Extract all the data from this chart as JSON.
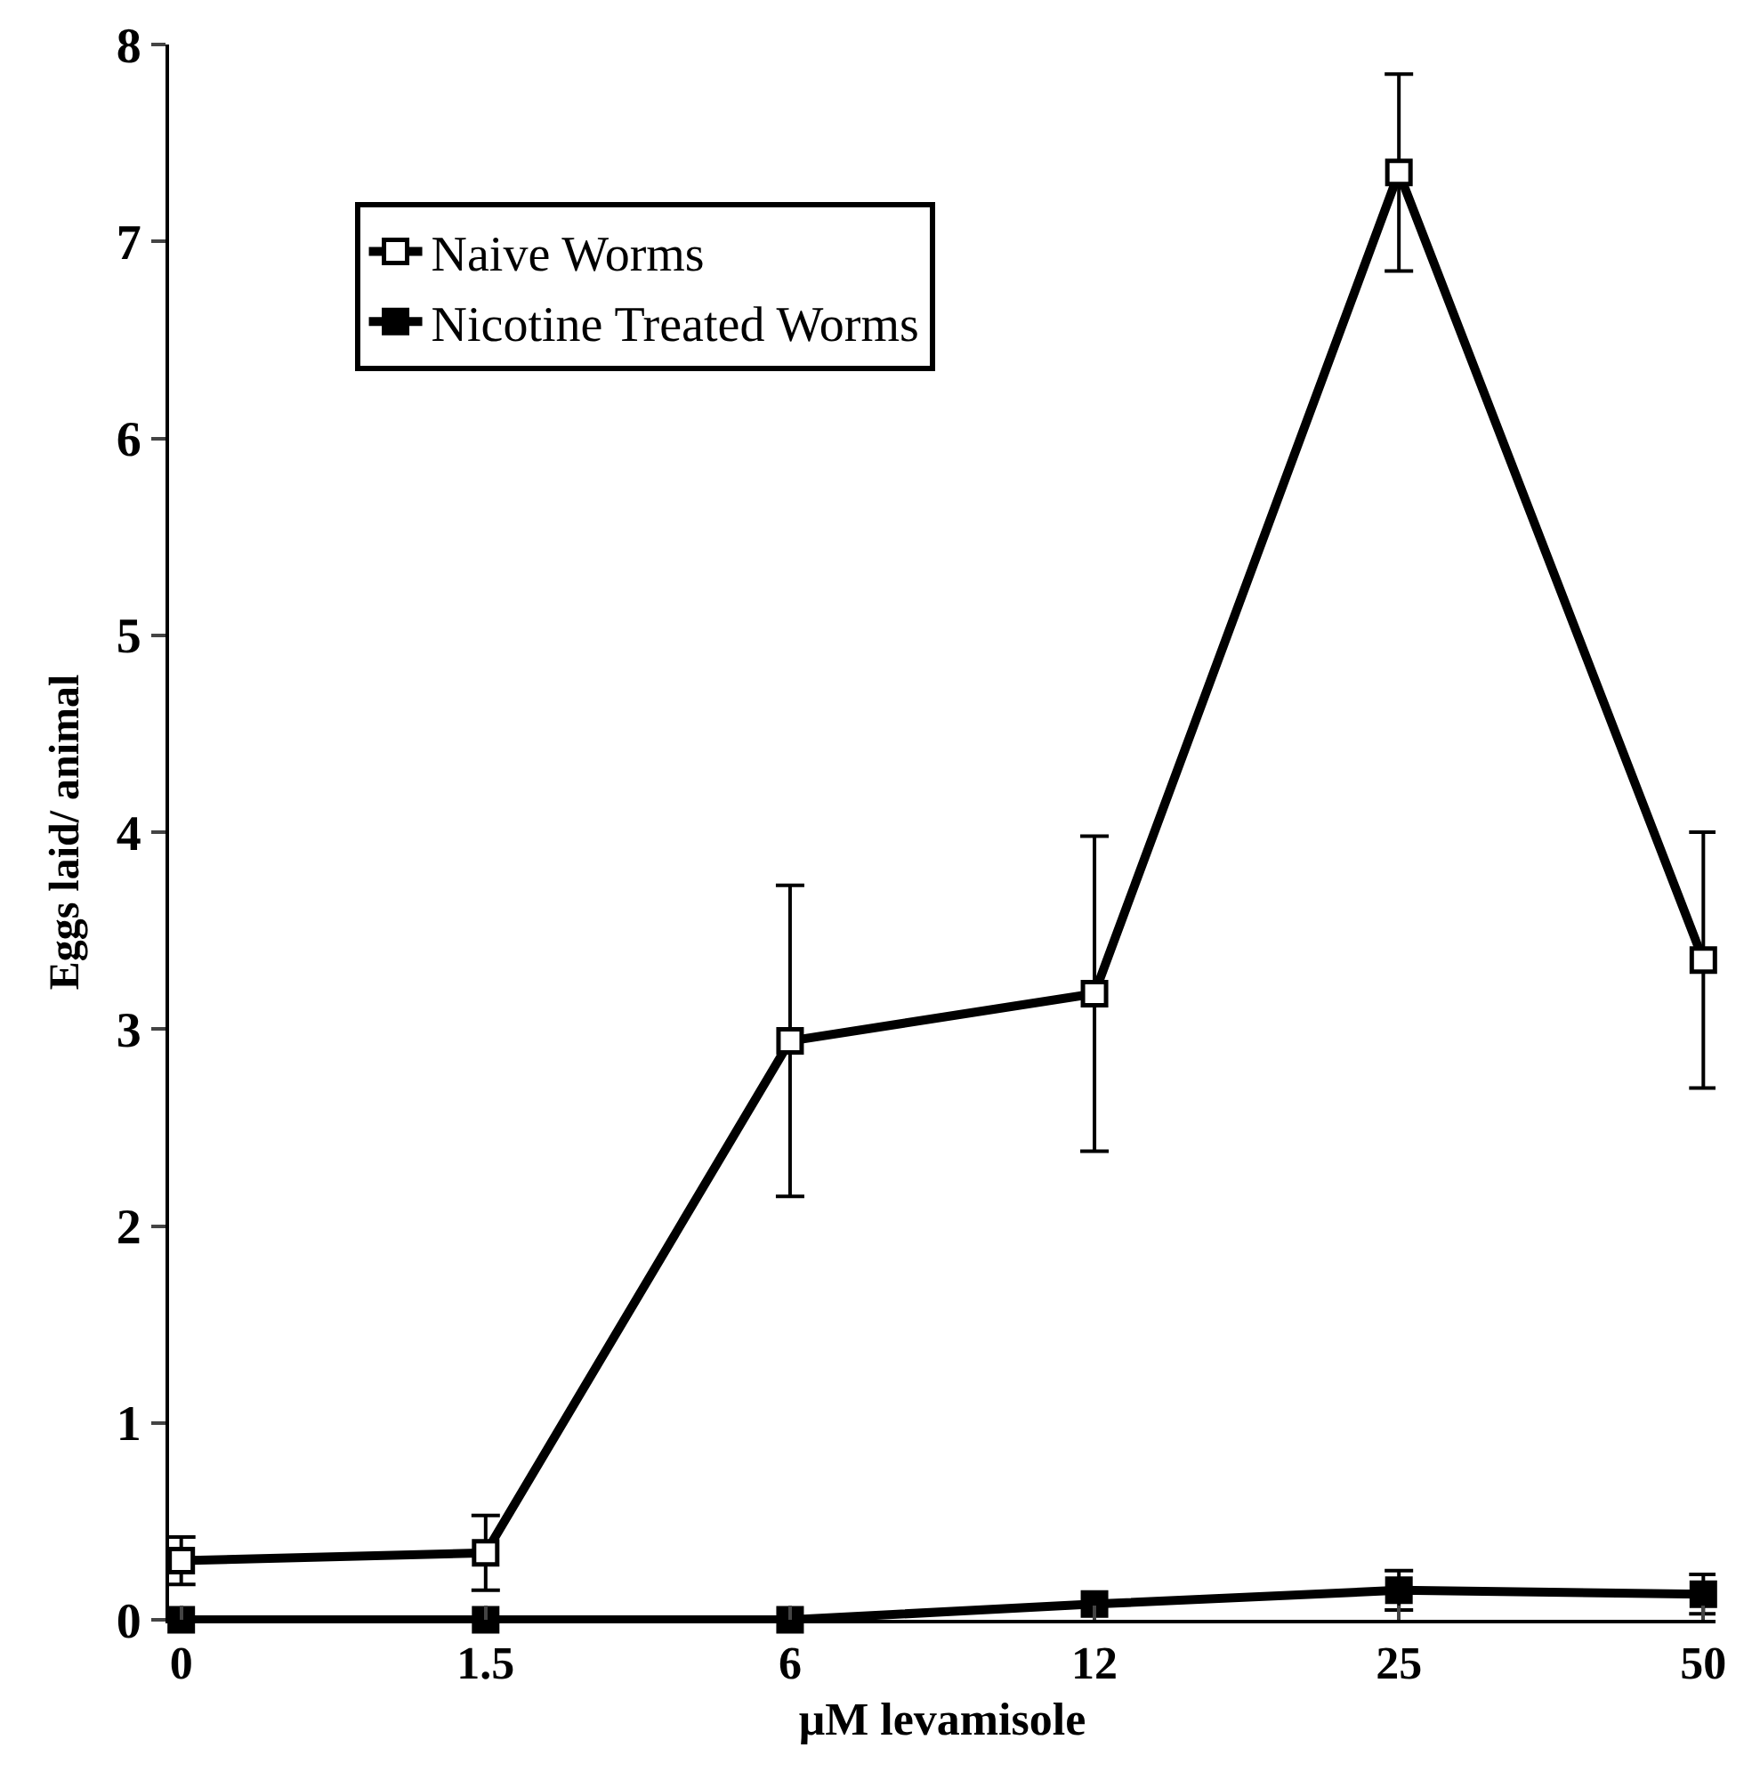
{
  "chart_data": {
    "type": "line",
    "xlabel": "μM levamisole",
    "ylabel": "Eggs laid/ animal",
    "categories": [
      "0",
      "1.5",
      "6",
      "12",
      "25",
      "50"
    ],
    "ylim": [
      0,
      8
    ],
    "yticks": [
      0,
      1,
      2,
      3,
      4,
      5,
      6,
      7,
      8
    ],
    "grid": false,
    "legend": "top left",
    "marker": "square",
    "line_style": "solid",
    "series": [
      {
        "name": "Naive Worms",
        "color": "#000000",
        "values": [
          0.3,
          0.34,
          2.94,
          3.18,
          7.35,
          3.35
        ],
        "errors": [
          0.12,
          0.19,
          0.79,
          0.8,
          0.5,
          0.65
        ]
      },
      {
        "name": "Nicotine Treated Worms",
        "color": "#000000",
        "values": [
          0,
          0,
          0,
          0.08,
          0.15,
          0.13
        ],
        "errors": [
          null,
          null,
          null,
          null,
          0.1,
          0.1
        ]
      }
    ]
  }
}
